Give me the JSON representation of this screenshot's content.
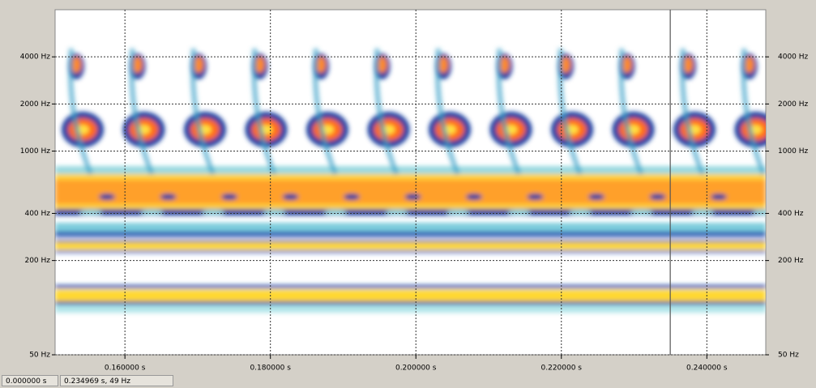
{
  "chart_data": {
    "type": "spectrogram",
    "xlim": [
      0.1504,
      0.2481
    ],
    "xticks": [
      {
        "value": 0.16,
        "label": "0.160000 s"
      },
      {
        "value": 0.18,
        "label": "0.180000 s"
      },
      {
        "value": 0.2,
        "label": "0.200000 s"
      },
      {
        "value": 0.22,
        "label": "0.220000 s"
      },
      {
        "value": 0.24,
        "label": "0.240000 s"
      }
    ],
    "ylim": [
      50,
      8000
    ],
    "log_y": true,
    "yticks": [
      {
        "value": 50,
        "label": "50 Hz"
      },
      {
        "value": 200,
        "label": "200 Hz"
      },
      {
        "value": 400,
        "label": "400 Hz"
      },
      {
        "value": 1000,
        "label": "1000 Hz"
      },
      {
        "value": 2000,
        "label": "2000 Hz"
      },
      {
        "value": 4000,
        "label": "4000 Hz"
      }
    ],
    "grid": true,
    "cursor_x": 0.234969
  },
  "status": {
    "selection": "0.000000 s",
    "cursor": "0.234969 s, 49 Hz"
  }
}
